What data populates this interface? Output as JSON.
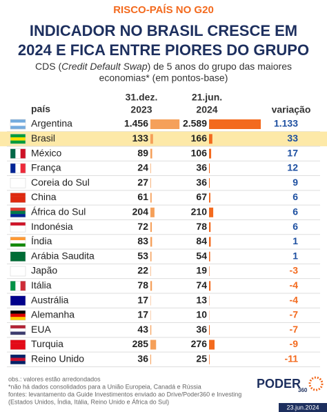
{
  "header": {
    "kicker": "RISCO-PAÍS NO G20",
    "title_lines": [
      "INDICADOR NO BRASIL CRESCE EM",
      "2024 E FICA ENTRE PIORES DO GRUPO"
    ],
    "subtitle": [
      "CDS (",
      "Credit Default Swap",
      ") de 5 anos do grupo das maiores",
      "economias* (em pontos-base)"
    ]
  },
  "table": {
    "columns": [
      "país",
      [
        "31.dez.",
        "2023"
      ],
      [
        "21.jun.",
        "2024"
      ],
      "variação"
    ],
    "highlight_row": 1,
    "bar_color_1": "#f5a05a",
    "bar_color_2": "#f36a1e",
    "rows": [
      [
        "Argentina",
        {
          "value": 1456,
          "label": "1.456"
        },
        {
          "value": 2589,
          "label": "2.589"
        },
        {
          "value": 1133,
          "label": "1.133"
        }
      ],
      [
        "Brasil",
        133,
        166,
        33
      ],
      [
        "México",
        89,
        106,
        17
      ],
      [
        "França",
        24,
        36,
        12
      ],
      [
        "Coreia do Sul",
        27,
        36,
        9
      ],
      [
        "China",
        61,
        67,
        6
      ],
      [
        "África do Sul",
        204,
        210,
        6
      ],
      [
        "Indonésia",
        72,
        78,
        6
      ],
      [
        "Índia",
        83,
        84,
        1
      ],
      [
        "Arábia Saudita",
        53,
        54,
        1
      ],
      [
        "Japão",
        22,
        19,
        -3
      ],
      [
        "Itália",
        78,
        74,
        -4
      ],
      [
        "Austrália",
        17,
        13,
        -4
      ],
      [
        "Alemanha",
        17,
        10,
        -7
      ],
      [
        "EUA",
        43,
        36,
        -7
      ],
      [
        "Turquia",
        285,
        276,
        -9
      ],
      [
        "Reino Unido",
        36,
        25,
        -11
      ]
    ]
  },
  "footer": {
    "notes": [
      "obs.: valores estão arredondados",
      "*não há dados consolidados para a União Europeia, Canadá e Rússia",
      "fontes: levantamento da Guide Investimentos enviado ao Drive/Poder360 e Investing",
      "(Estados Unidos, Índia, Itália, Reino Unido e África do Sul)"
    ],
    "logo": "PODER",
    "logo_sub": "360",
    "date": "23.jun.2024"
  }
}
